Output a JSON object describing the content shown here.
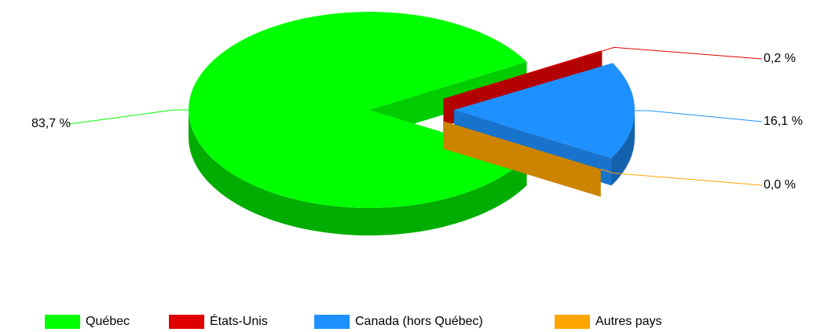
{
  "chart_data": {
    "type": "pie",
    "categories": [
      "Québec",
      "États-Unis",
      "Canada (hors Québec)",
      "Autres pays"
    ],
    "values": [
      83.7,
      0.2,
      16.1,
      0.0
    ],
    "value_labels": [
      "83,7 %",
      "0,2 %",
      "16,1 %",
      "0,0 %"
    ],
    "colors": [
      "#00ff00",
      "#e00000",
      "#1e90ff",
      "#ffa500"
    ],
    "legend": "bottom"
  }
}
